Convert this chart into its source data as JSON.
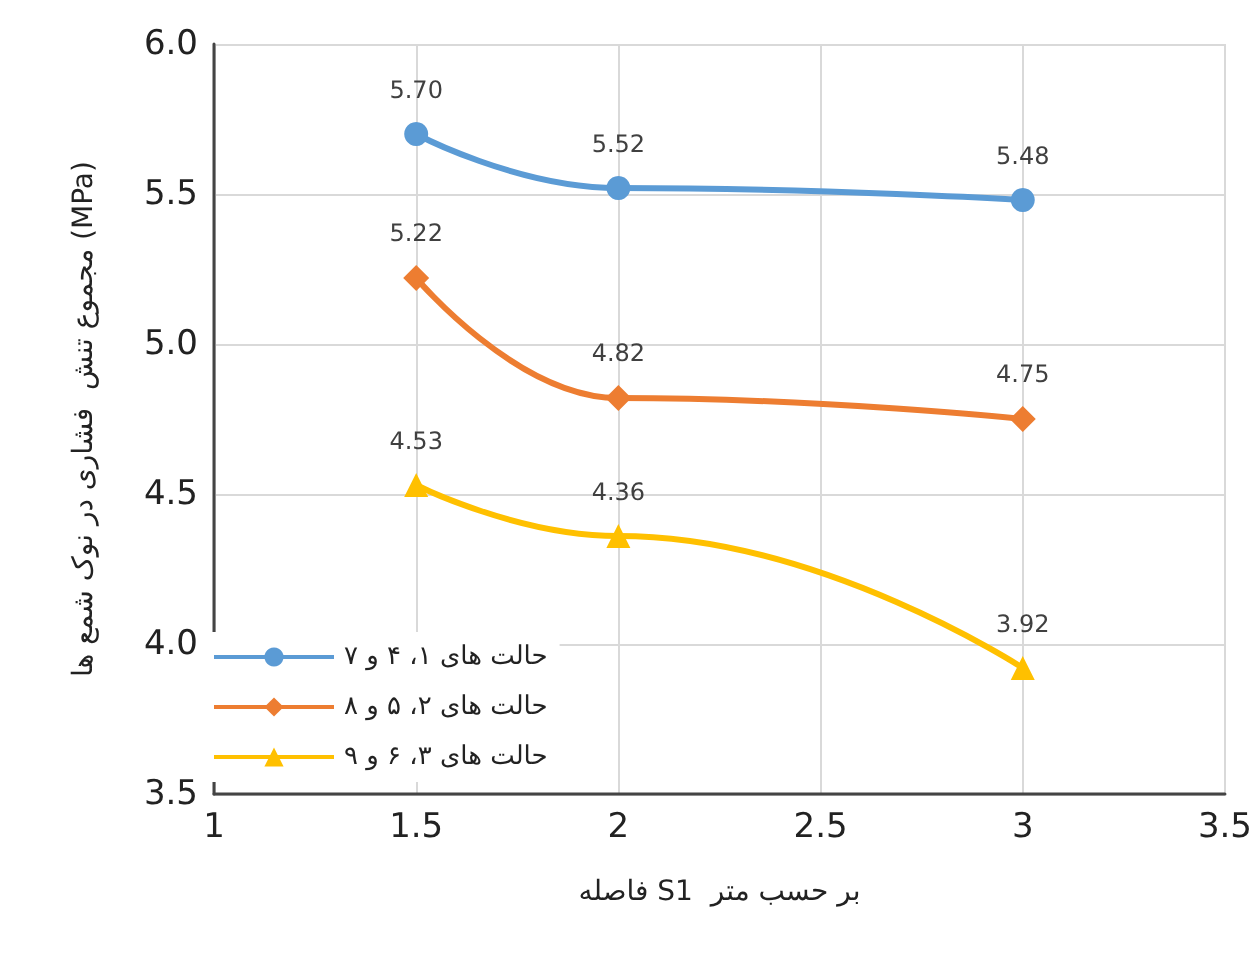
{
  "chart_data": {
    "type": "line",
    "xlabel": "فاصله S1  بر حسب متر",
    "ylabel": "مجموع تنش  فشاری در نوک شمع ها (MPa)",
    "xlim": [
      1,
      3.5
    ],
    "xticks": [
      1,
      1.5,
      2,
      2.5,
      3,
      3.5
    ],
    "ylim": [
      3.5,
      6
    ],
    "yticks": [
      {
        "value": 3.5,
        "label": "3.5"
      },
      {
        "value": 4,
        "label": "4.0"
      },
      {
        "value": 4.5,
        "label": "4.5"
      },
      {
        "value": 5,
        "label": "5.0"
      },
      {
        "value": 5.5,
        "label": "5.5"
      },
      {
        "value": 6,
        "label": "6.0"
      }
    ],
    "grid": true,
    "legend": "bottom left",
    "line_style": "solid",
    "series": [
      {
        "name": "حالت های ۱، ۴ و ۷",
        "color": "#5b9bd5",
        "marker": "circle",
        "x": [
          1.5,
          2,
          3
        ],
        "values": [
          5.7,
          5.52,
          5.48
        ],
        "value_labels": [
          "5.70",
          "5.52",
          "5.48"
        ]
      },
      {
        "name": "حالت های ۲، ۵ و ۸",
        "color": "#ed7d31",
        "marker": "diamond",
        "x": [
          1.5,
          2,
          3
        ],
        "values": [
          5.22,
          4.82,
          4.75
        ],
        "value_labels": [
          "5.22",
          "4.82",
          "4.75"
        ]
      },
      {
        "name": "حالت های ۳، ۶ و ۹",
        "color": "#ffc000",
        "marker": "triangle",
        "x": [
          1.5,
          2,
          3
        ],
        "values": [
          4.53,
          4.36,
          3.92
        ],
        "value_labels": [
          "4.53",
          "4.36",
          "3.92"
        ]
      }
    ]
  }
}
